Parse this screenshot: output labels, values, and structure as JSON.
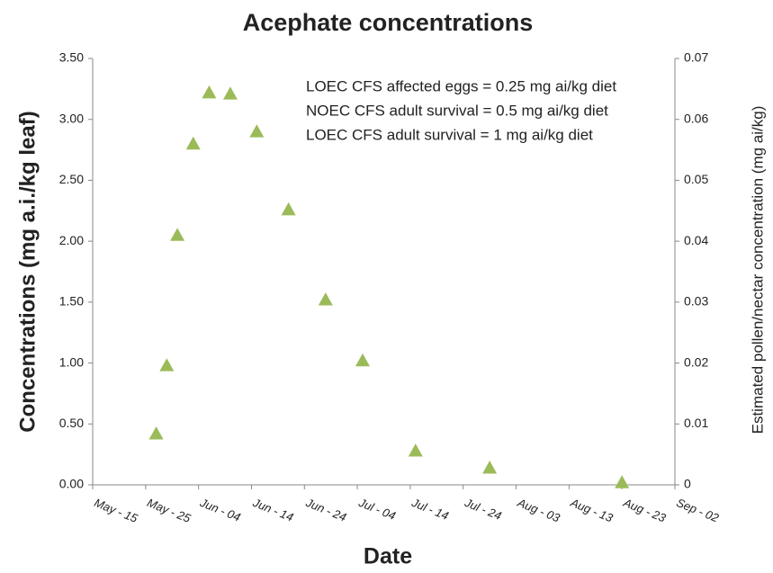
{
  "chart_data": {
    "type": "scatter",
    "title": "Acephate concentrations",
    "x_label": "Date",
    "y_label": "Concentrations  (mg a.i./kg leaf)",
    "y2_label": "Estimated pollen/nectar concentration (mg ai/kg)",
    "annotations": [
      "LOEC CFS affected eggs = 0.25 mg ai/kg diet",
      "NOEC CFS adult survival = 0.5 mg ai/kg diet",
      "LOEC CFS adult survival = 1 mg ai/kg diet"
    ],
    "x": [
      "May - 27",
      "May - 29",
      "May - 31",
      "Jun - 03",
      "Jun - 06",
      "Jun - 10",
      "Jun - 15",
      "Jun - 21",
      "Jun - 28",
      "Jul - 05",
      "Jul - 15",
      "Jul - 29",
      "Aug - 23"
    ],
    "values": [
      0.42,
      0.98,
      2.05,
      2.8,
      3.22,
      3.21,
      2.9,
      2.26,
      1.52,
      1.02,
      0.28,
      0.14,
      0.02
    ],
    "color": "#9bbb59",
    "xlim": [
      "May - 15",
      "Sep - 02"
    ],
    "xticks": [
      "May - 15",
      "May - 25",
      "Jun - 04",
      "Jun - 14",
      "Jun - 24",
      "Jul - 04",
      "Jul - 14",
      "Jul - 24",
      "Aug - 03",
      "Aug - 13",
      "Aug - 23",
      "Sep - 02"
    ],
    "ylim": [
      0,
      3.5
    ],
    "yticks": [
      {
        "value": 0,
        "label": "0.00"
      },
      {
        "value": 0.5,
        "label": "0.50"
      },
      {
        "value": 1,
        "label": "1.00"
      },
      {
        "value": 1.5,
        "label": "1.50"
      },
      {
        "value": 2,
        "label": "2.00"
      },
      {
        "value": 2.5,
        "label": "2.50"
      },
      {
        "value": 3,
        "label": "3.00"
      },
      {
        "value": 3.5,
        "label": "3.50"
      }
    ],
    "y2lim": [
      0,
      0.07
    ],
    "y2ticks": [
      0,
      0.01,
      0.02,
      0.03,
      0.04,
      0.05,
      0.06,
      0.07
    ],
    "grid": false
  }
}
